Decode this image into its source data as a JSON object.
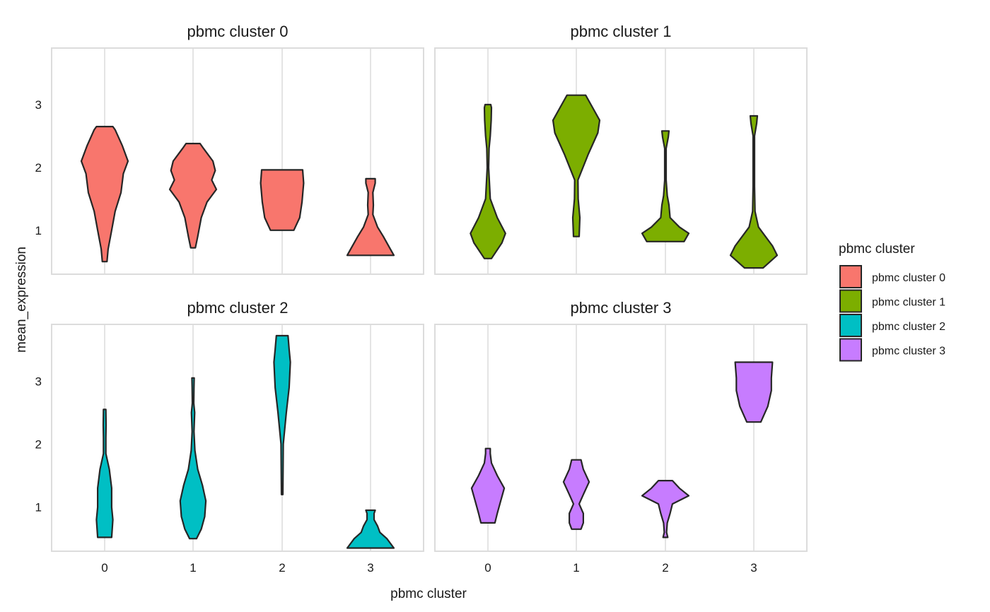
{
  "chart_data": {
    "type": "violin",
    "xlabel": "pbmc cluster",
    "ylabel": "mean_expression",
    "categories": [
      "0",
      "1",
      "2",
      "3"
    ],
    "yticks": [
      1,
      2,
      3
    ],
    "ylim": [
      0.3,
      3.9
    ],
    "legend": {
      "title": "pbmc cluster",
      "position": "right",
      "entries": [
        {
          "label": "pbmc cluster 0",
          "color": "#F8766D"
        },
        {
          "label": "pbmc cluster 1",
          "color": "#7CAE00"
        },
        {
          "label": "pbmc cluster 2",
          "color": "#00BFC4"
        },
        {
          "label": "pbmc cluster 3",
          "color": "#C77CFF"
        }
      ]
    },
    "facets": [
      {
        "title": "pbmc cluster 0",
        "violins": [
          {
            "x": "0",
            "profile": [
              [
                0.5,
                0.1
              ],
              [
                0.7,
                0.15
              ],
              [
                1.0,
                0.3
              ],
              [
                1.3,
                0.45
              ],
              [
                1.6,
                0.7
              ],
              [
                1.9,
                0.8
              ],
              [
                2.1,
                1.0
              ],
              [
                2.35,
                0.75
              ],
              [
                2.6,
                0.45
              ],
              [
                2.65,
                0.35
              ]
            ]
          },
          {
            "x": "1",
            "profile": [
              [
                0.72,
                0.1
              ],
              [
                0.9,
                0.2
              ],
              [
                1.2,
                0.35
              ],
              [
                1.45,
                0.6
              ],
              [
                1.65,
                1.0
              ],
              [
                1.8,
                0.8
              ],
              [
                1.95,
                0.95
              ],
              [
                2.1,
                0.85
              ],
              [
                2.3,
                0.45
              ],
              [
                2.38,
                0.3
              ]
            ]
          },
          {
            "x": "2",
            "profile": [
              [
                1.0,
                0.5
              ],
              [
                1.2,
                0.75
              ],
              [
                1.45,
                0.85
              ],
              [
                1.75,
                0.92
              ],
              [
                1.96,
                0.88
              ]
            ]
          },
          {
            "x": "3",
            "profile": [
              [
                0.6,
                1.0
              ],
              [
                0.7,
                0.85
              ],
              [
                0.9,
                0.55
              ],
              [
                1.05,
                0.3
              ],
              [
                1.25,
                0.1
              ],
              [
                1.4,
                0.12
              ],
              [
                1.6,
                0.1
              ],
              [
                1.75,
                0.2
              ],
              [
                1.82,
                0.2
              ]
            ]
          }
        ]
      },
      {
        "title": "pbmc cluster 1",
        "violins": [
          {
            "x": "0",
            "profile": [
              [
                0.55,
                0.15
              ],
              [
                0.8,
                0.6
              ],
              [
                0.95,
                0.75
              ],
              [
                1.2,
                0.4
              ],
              [
                1.5,
                0.1
              ],
              [
                2.0,
                0.03
              ],
              [
                2.3,
                0.05
              ],
              [
                2.5,
                0.1
              ],
              [
                2.75,
                0.14
              ],
              [
                2.95,
                0.15
              ],
              [
                3.0,
                0.12
              ]
            ]
          },
          {
            "x": "1",
            "profile": [
              [
                0.9,
                0.12
              ],
              [
                1.2,
                0.15
              ],
              [
                1.5,
                0.08
              ],
              [
                1.8,
                0.07
              ],
              [
                2.2,
                0.5
              ],
              [
                2.55,
                0.92
              ],
              [
                2.75,
                1.0
              ],
              [
                2.95,
                0.7
              ],
              [
                3.15,
                0.4
              ]
            ]
          },
          {
            "x": "2",
            "profile": [
              [
                0.82,
                0.8
              ],
              [
                0.95,
                1.0
              ],
              [
                1.05,
                0.6
              ],
              [
                1.2,
                0.2
              ],
              [
                1.4,
                0.15
              ],
              [
                1.55,
                0.08
              ],
              [
                1.8,
                0.03
              ],
              [
                2.3,
                0.03
              ],
              [
                2.48,
                0.12
              ],
              [
                2.58,
                0.15
              ]
            ]
          },
          {
            "x": "3",
            "profile": [
              [
                0.4,
                0.4
              ],
              [
                0.6,
                1.0
              ],
              [
                0.75,
                0.8
              ],
              [
                0.9,
                0.5
              ],
              [
                1.05,
                0.2
              ],
              [
                1.3,
                0.05
              ],
              [
                1.7,
                0.03
              ],
              [
                2.5,
                0.03
              ],
              [
                2.7,
                0.12
              ],
              [
                2.82,
                0.15
              ]
            ]
          }
        ]
      },
      {
        "title": "pbmc cluster 2",
        "violins": [
          {
            "x": "0",
            "profile": [
              [
                0.52,
                0.3
              ],
              [
                0.8,
                0.35
              ],
              [
                1.0,
                0.3
              ],
              [
                1.3,
                0.3
              ],
              [
                1.6,
                0.2
              ],
              [
                1.85,
                0.05
              ],
              [
                2.1,
                0.05
              ],
              [
                2.3,
                0.06
              ],
              [
                2.55,
                0.05
              ]
            ]
          },
          {
            "x": "1",
            "profile": [
              [
                0.5,
                0.15
              ],
              [
                0.65,
                0.35
              ],
              [
                0.85,
                0.5
              ],
              [
                1.1,
                0.55
              ],
              [
                1.35,
                0.4
              ],
              [
                1.6,
                0.2
              ],
              [
                1.9,
                0.08
              ],
              [
                2.2,
                0.04
              ],
              [
                2.5,
                0.07
              ],
              [
                2.65,
                0.03
              ],
              [
                2.9,
                0.04
              ],
              [
                3.05,
                0.05
              ]
            ]
          },
          {
            "x": "2",
            "profile": [
              [
                1.2,
                0.03
              ],
              [
                1.6,
                0.04
              ],
              [
                2.0,
                0.05
              ],
              [
                2.5,
                0.18
              ],
              [
                2.9,
                0.3
              ],
              [
                3.3,
                0.35
              ],
              [
                3.5,
                0.3
              ],
              [
                3.72,
                0.25
              ]
            ]
          },
          {
            "x": "3",
            "profile": [
              [
                0.35,
                1.0
              ],
              [
                0.5,
                0.7
              ],
              [
                0.6,
                0.4
              ],
              [
                0.7,
                0.3
              ],
              [
                0.8,
                0.15
              ],
              [
                0.9,
                0.15
              ],
              [
                0.95,
                0.2
              ]
            ]
          }
        ]
      },
      {
        "title": "pbmc cluster 3",
        "violins": [
          {
            "x": "0",
            "profile": [
              [
                0.75,
                0.3
              ],
              [
                0.9,
                0.4
              ],
              [
                1.1,
                0.55
              ],
              [
                1.3,
                0.7
              ],
              [
                1.5,
                0.4
              ],
              [
                1.7,
                0.15
              ],
              [
                1.85,
                0.1
              ],
              [
                1.93,
                0.1
              ]
            ]
          },
          {
            "x": "1",
            "profile": [
              [
                0.65,
                0.2
              ],
              [
                0.75,
                0.3
              ],
              [
                0.9,
                0.3
              ],
              [
                1.05,
                0.12
              ],
              [
                1.2,
                0.3
              ],
              [
                1.4,
                0.55
              ],
              [
                1.6,
                0.3
              ],
              [
                1.75,
                0.2
              ]
            ]
          },
          {
            "x": "2",
            "profile": [
              [
                0.52,
                0.1
              ],
              [
                0.6,
                0.05
              ],
              [
                0.75,
                0.08
              ],
              [
                0.9,
                0.2
              ],
              [
                1.05,
                0.3
              ],
              [
                1.18,
                1.0
              ],
              [
                1.3,
                0.6
              ],
              [
                1.42,
                0.3
              ]
            ]
          },
          {
            "x": "3",
            "profile": [
              [
                2.35,
                0.3
              ],
              [
                2.6,
                0.6
              ],
              [
                2.85,
                0.75
              ],
              [
                3.05,
                0.75
              ],
              [
                3.3,
                0.8
              ]
            ]
          }
        ]
      }
    ]
  }
}
